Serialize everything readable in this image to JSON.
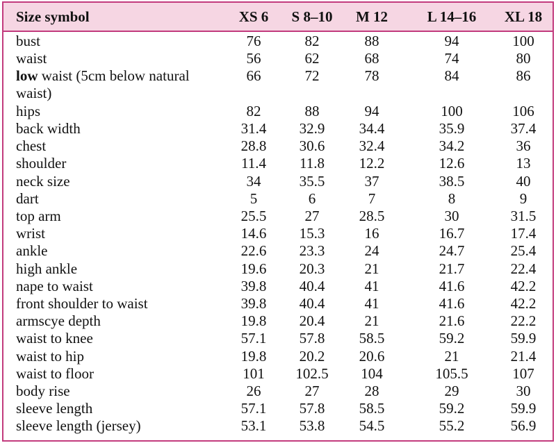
{
  "table": {
    "header": [
      "Size symbol",
      "XS 6",
      "S 8–10",
      "M 12",
      "L 14–16",
      "XL 18"
    ],
    "rows": [
      {
        "label": "bust",
        "values": [
          76,
          82,
          88,
          94,
          100
        ]
      },
      {
        "label": "waist",
        "values": [
          56,
          62,
          68,
          74,
          80
        ]
      },
      {
        "label_bold": "low",
        "label": "waist (5cm below natural waist)",
        "values": [
          66,
          72,
          78,
          84,
          86
        ]
      },
      {
        "label": "hips",
        "values": [
          82,
          88,
          94,
          100,
          106
        ]
      },
      {
        "label": "back width",
        "values": [
          31.4,
          32.9,
          34.4,
          35.9,
          37.4
        ]
      },
      {
        "label": "chest",
        "values": [
          28.8,
          30.6,
          32.4,
          34.2,
          36
        ]
      },
      {
        "label": "shoulder",
        "values": [
          11.4,
          11.8,
          12.2,
          12.6,
          13
        ]
      },
      {
        "label": "neck size",
        "values": [
          34,
          35.5,
          37,
          38.5,
          40
        ]
      },
      {
        "label": "dart",
        "values": [
          5,
          6,
          7,
          8,
          9
        ]
      },
      {
        "label": "top arm",
        "values": [
          25.5,
          27,
          28.5,
          30,
          31.5
        ]
      },
      {
        "label": "wrist",
        "values": [
          14.6,
          15.3,
          16,
          16.7,
          17.4
        ]
      },
      {
        "label": "ankle",
        "values": [
          22.6,
          23.3,
          24,
          24.7,
          25.4
        ]
      },
      {
        "label": "high ankle",
        "values": [
          19.6,
          20.3,
          21,
          21.7,
          22.4
        ]
      },
      {
        "label": "nape to waist",
        "values": [
          39.8,
          40.4,
          41,
          41.6,
          42.2
        ]
      },
      {
        "label": "front shoulder to waist",
        "values": [
          39.8,
          40.4,
          41,
          41.6,
          42.2
        ]
      },
      {
        "label": "armscye depth",
        "values": [
          19.8,
          20.4,
          21,
          21.6,
          22.2
        ]
      },
      {
        "label": "waist to knee",
        "values": [
          57.1,
          57.8,
          58.5,
          59.2,
          59.9
        ]
      },
      {
        "label": "waist to hip",
        "values": [
          19.8,
          20.2,
          20.6,
          21,
          21.4
        ]
      },
      {
        "label": "waist to floor",
        "values": [
          101,
          102.5,
          104,
          105.5,
          107
        ]
      },
      {
        "label": "body rise",
        "values": [
          26,
          27,
          28,
          29,
          30
        ]
      },
      {
        "label": "sleeve length",
        "values": [
          57.1,
          57.8,
          58.5,
          59.2,
          59.9
        ]
      },
      {
        "label": "sleeve length (jersey)",
        "values": [
          53.1,
          53.8,
          54.5,
          55.2,
          56.9
        ]
      }
    ]
  }
}
